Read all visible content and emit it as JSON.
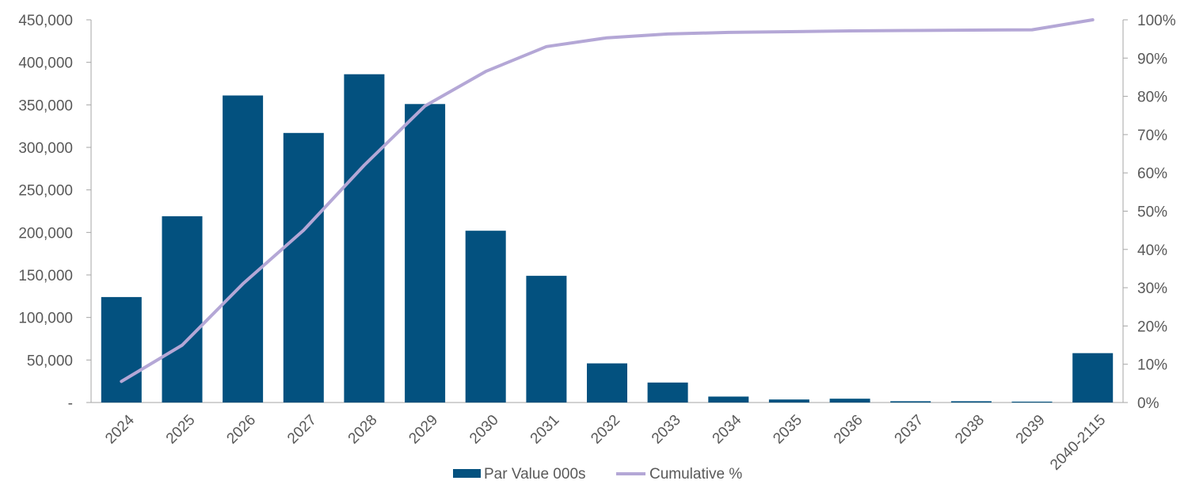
{
  "chart_data": {
    "type": "bar",
    "categories": [
      "2024",
      "2025",
      "2026",
      "2027",
      "2028",
      "2029",
      "2030",
      "2031",
      "2032",
      "2033",
      "2034",
      "2035",
      "2036",
      "2037",
      "2038",
      "2039",
      "2040-2115"
    ],
    "series": [
      {
        "name": "Par Value 000s",
        "type": "bar",
        "axis": "left",
        "color": "#03517f",
        "values": [
          124000,
          219000,
          361000,
          317000,
          386000,
          351000,
          202000,
          149000,
          46000,
          23500,
          7000,
          3500,
          4500,
          1500,
          1500,
          1000,
          58000
        ]
      },
      {
        "name": "Cumulative %",
        "type": "line",
        "axis": "right",
        "color": "#b4a7d6",
        "values": [
          5.5,
          15.0,
          31.0,
          45.0,
          62.0,
          77.5,
          86.5,
          93.0,
          95.3,
          96.3,
          96.7,
          96.9,
          97.1,
          97.2,
          97.3,
          97.4,
          100.0
        ]
      }
    ],
    "y_left": {
      "min": 0,
      "max": 450000,
      "ticks": [
        0,
        50000,
        100000,
        150000,
        200000,
        250000,
        300000,
        350000,
        400000,
        450000
      ],
      "tick_labels": [
        "-",
        "50,000",
        "100,000",
        "150,000",
        "200,000",
        "250,000",
        "300,000",
        "350,000",
        "400,000",
        "450,000"
      ]
    },
    "y_right": {
      "min": 0,
      "max": 100,
      "ticks": [
        0,
        10,
        20,
        30,
        40,
        50,
        60,
        70,
        80,
        90,
        100
      ],
      "tick_labels": [
        "0%",
        "10%",
        "20%",
        "30%",
        "40%",
        "50%",
        "60%",
        "70%",
        "80%",
        "90%",
        "100%"
      ]
    },
    "title": "",
    "xlabel": "",
    "ylabel": "",
    "grid": false,
    "legend": {
      "position": "bottom",
      "entries": [
        "Par Value 000s",
        "Cumulative %"
      ]
    }
  }
}
